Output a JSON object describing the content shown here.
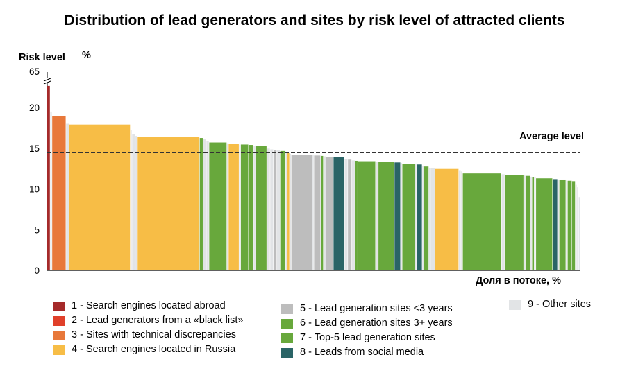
{
  "chart_data": {
    "type": "bar",
    "title": "Distribution of lead generators and sites by risk level of attracted clients",
    "ylabel": "Risk level",
    "ylabel_unit": "%",
    "xlabel": "Доля в потоке, %",
    "yticks": [
      0,
      5,
      10,
      15,
      20,
      65
    ],
    "y_break": "axis break between 20 and 65",
    "average": {
      "label": "Average level",
      "value": 14.5
    },
    "categories": [
      {
        "name": "1 - Search engines located abroad",
        "color": "#a52a2a"
      },
      {
        "name": "2 - Lead generators from a «black list»",
        "color": "#e0402a"
      },
      {
        "name": "3 - Sites with technical discrepancies",
        "color": "#e8783a"
      },
      {
        "name": "4 - Search engines located in Russia",
        "color": "#f7bd46"
      },
      {
        "name": "5 - Lead generation sites <3 years",
        "color": "#bdbdbd"
      },
      {
        "name": "6 - Lead generation sites 3+ years",
        "color": "#68a83c"
      },
      {
        "name": "7 - Top-5 lead generation sites",
        "color": "#68a83c"
      },
      {
        "name": "8 - Leads from social media",
        "color": "#2a6466"
      },
      {
        "name": "9 - Other sites",
        "color": "#e2e4e6"
      }
    ],
    "bars": [
      {
        "cat": 1,
        "w": 0.55,
        "v": 23.2
      },
      {
        "cat": 9,
        "w": 0.35,
        "v": 19.5
      },
      {
        "cat": 3,
        "w": 2.5,
        "v": 18.9
      },
      {
        "cat": 9,
        "w": 0.6,
        "v": 18.0
      },
      {
        "cat": 4,
        "w": 11.0,
        "v": 17.9
      },
      {
        "cat": 9,
        "w": 0.3,
        "v": 17.2
      },
      {
        "cat": 9,
        "w": 0.6,
        "v": 16.7
      },
      {
        "cat": 9,
        "w": 0.4,
        "v": 16.5
      },
      {
        "cat": 4,
        "w": 11.2,
        "v": 16.35
      },
      {
        "cat": 6,
        "w": 0.6,
        "v": 16.25
      },
      {
        "cat": 9,
        "w": 0.6,
        "v": 16.1
      },
      {
        "cat": 9,
        "w": 0.5,
        "v": 15.9
      },
      {
        "cat": 6,
        "w": 3.2,
        "v": 15.7
      },
      {
        "cat": 9,
        "w": 0.3,
        "v": 15.6
      },
      {
        "cat": 4,
        "w": 1.9,
        "v": 15.55
      },
      {
        "cat": 9,
        "w": 0.3,
        "v": 15.45
      },
      {
        "cat": 6,
        "w": 1.4,
        "v": 15.45
      },
      {
        "cat": 6,
        "w": 0.9,
        "v": 15.4
      },
      {
        "cat": 9,
        "w": 0.4,
        "v": 15.3
      },
      {
        "cat": 6,
        "w": 2.0,
        "v": 15.25
      },
      {
        "cat": 9,
        "w": 0.6,
        "v": 14.95
      },
      {
        "cat": 9,
        "w": 0.6,
        "v": 14.85
      },
      {
        "cat": 5,
        "w": 0.6,
        "v": 14.8
      },
      {
        "cat": 9,
        "w": 0.6,
        "v": 14.75
      },
      {
        "cat": 6,
        "w": 1.0,
        "v": 14.65
      },
      {
        "cat": 9,
        "w": 0.3,
        "v": 14.55
      },
      {
        "cat": 4,
        "w": 0.4,
        "v": 14.45
      },
      {
        "cat": 9,
        "w": 0.3,
        "v": 14.3
      },
      {
        "cat": 5,
        "w": 3.8,
        "v": 14.2
      },
      {
        "cat": 9,
        "w": 0.3,
        "v": 14.15
      },
      {
        "cat": 5,
        "w": 1.2,
        "v": 14.1
      },
      {
        "cat": 6,
        "w": 0.5,
        "v": 14.05
      },
      {
        "cat": 9,
        "w": 0.5,
        "v": 14.0
      },
      {
        "cat": 5,
        "w": 1.3,
        "v": 13.95
      },
      {
        "cat": 8,
        "w": 2.0,
        "v": 13.95
      },
      {
        "cat": 9,
        "w": 0.6,
        "v": 13.7
      },
      {
        "cat": 5,
        "w": 0.7,
        "v": 13.6
      },
      {
        "cat": 9,
        "w": 0.6,
        "v": 13.5
      },
      {
        "cat": 6,
        "w": 0.5,
        "v": 13.45
      },
      {
        "cat": 6,
        "w": 3.2,
        "v": 13.4
      },
      {
        "cat": 9,
        "w": 0.5,
        "v": 13.35
      },
      {
        "cat": 6,
        "w": 2.9,
        "v": 13.3
      },
      {
        "cat": 8,
        "w": 1.1,
        "v": 13.25
      },
      {
        "cat": 9,
        "w": 0.3,
        "v": 13.2
      },
      {
        "cat": 6,
        "w": 2.3,
        "v": 13.1
      },
      {
        "cat": 9,
        "w": 0.3,
        "v": 13.05
      },
      {
        "cat": 8,
        "w": 1.0,
        "v": 13.0
      },
      {
        "cat": 9,
        "w": 0.3,
        "v": 12.8
      },
      {
        "cat": 6,
        "w": 0.9,
        "v": 12.75
      },
      {
        "cat": 9,
        "w": 0.3,
        "v": 12.6
      },
      {
        "cat": 9,
        "w": 0.8,
        "v": 12.55
      },
      {
        "cat": 4,
        "w": 4.3,
        "v": 12.45
      },
      {
        "cat": 9,
        "w": 0.4,
        "v": 12.3
      },
      {
        "cat": 9,
        "w": 0.3,
        "v": 12.15
      },
      {
        "cat": 6,
        "w": 7.0,
        "v": 11.9
      },
      {
        "cat": 9,
        "w": 0.6,
        "v": 11.8
      },
      {
        "cat": 6,
        "w": 3.4,
        "v": 11.7
      },
      {
        "cat": 9,
        "w": 0.3,
        "v": 11.65
      },
      {
        "cat": 6,
        "w": 0.9,
        "v": 11.6
      },
      {
        "cat": 9,
        "w": 0.3,
        "v": 11.5
      },
      {
        "cat": 6,
        "w": 0.4,
        "v": 11.45
      },
      {
        "cat": 9,
        "w": 0.3,
        "v": 11.4
      },
      {
        "cat": 6,
        "w": 3.0,
        "v": 11.3
      },
      {
        "cat": 8,
        "w": 0.9,
        "v": 11.2
      },
      {
        "cat": 9,
        "w": 0.3,
        "v": 11.15
      },
      {
        "cat": 6,
        "w": 1.2,
        "v": 11.15
      },
      {
        "cat": 9,
        "w": 0.3,
        "v": 11.05
      },
      {
        "cat": 6,
        "w": 0.8,
        "v": 11.0
      },
      {
        "cat": 6,
        "w": 0.6,
        "v": 10.95
      },
      {
        "cat": 9,
        "w": 0.3,
        "v": 10.5
      },
      {
        "cat": 9,
        "w": 0.3,
        "v": 10.2
      },
      {
        "cat": 9,
        "w": 0.3,
        "v": 9.0
      }
    ]
  }
}
